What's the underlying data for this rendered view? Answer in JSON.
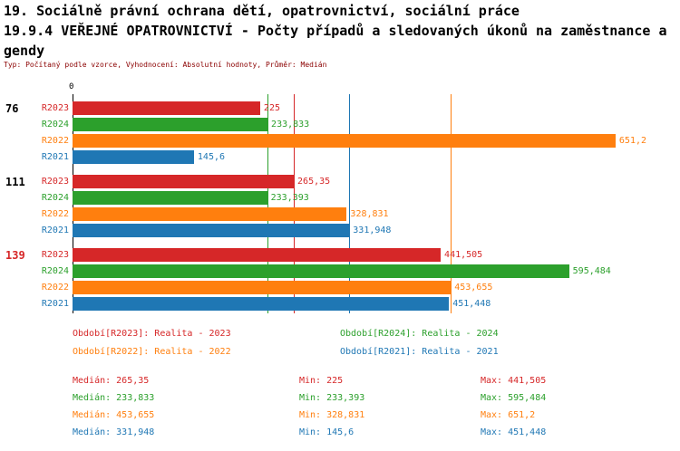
{
  "title": {
    "line1": "19. Sociálně právní ochrana dětí, opatrovnictví, sociální práce",
    "line2": "19.9.4 VEŘEJNÉ OPATROVNICTVÍ - Počty případů a sledovaných úkonů na zaměstnance a",
    "line3": "gendy",
    "subtitle": "Typ: Počítaný podle vzorce, Vyhodnocení: Absolutní hodnoty, Průměr: Medián"
  },
  "colors": {
    "R2023": "#d62728",
    "R2024": "#2ca02c",
    "R2022": "#ff7f0e",
    "R2021": "#1f77b4",
    "subtitle": "#8b0000",
    "axis": "#000000"
  },
  "chart_data": {
    "type": "bar",
    "orientation": "horizontal",
    "axis_origin_label": "0",
    "xlim": [
      0,
      685
    ],
    "grid": false,
    "series_order": [
      "R2023",
      "R2024",
      "R2022",
      "R2021"
    ],
    "groups": [
      {
        "label": "76",
        "label_color": "#000000",
        "bars": [
          {
            "series": "R2023",
            "value": 225,
            "value_label": "225"
          },
          {
            "series": "R2024",
            "value": 233.833,
            "value_label": "233,833"
          },
          {
            "series": "R2022",
            "value": 651.2,
            "value_label": "651,2"
          },
          {
            "series": "R2021",
            "value": 145.6,
            "value_label": "145,6"
          }
        ]
      },
      {
        "label": "111",
        "label_color": "#000000",
        "bars": [
          {
            "series": "R2023",
            "value": 265.35,
            "value_label": "265,35"
          },
          {
            "series": "R2024",
            "value": 233.393,
            "value_label": "233,393"
          },
          {
            "series": "R2022",
            "value": 328.831,
            "value_label": "328,831"
          },
          {
            "series": "R2021",
            "value": 331.948,
            "value_label": "331,948"
          }
        ]
      },
      {
        "label": "139",
        "label_color": "#d62728",
        "bars": [
          {
            "series": "R2023",
            "value": 441.505,
            "value_label": "441,505"
          },
          {
            "series": "R2024",
            "value": 595.484,
            "value_label": "595,484"
          },
          {
            "series": "R2022",
            "value": 453.655,
            "value_label": "453,655"
          },
          {
            "series": "R2021",
            "value": 451.448,
            "value_label": "451,448"
          }
        ]
      }
    ],
    "median_lines": [
      {
        "series": "R2023",
        "value": 265.35
      },
      {
        "series": "R2024",
        "value": 233.833
      },
      {
        "series": "R2022",
        "value": 453.655
      },
      {
        "series": "R2021",
        "value": 331.948
      }
    ]
  },
  "legend": [
    {
      "series": "R2023",
      "label": "Období[R2023]: Realita - 2023"
    },
    {
      "series": "R2024",
      "label": "Období[R2024]: Realita - 2024"
    },
    {
      "series": "R2022",
      "label": "Období[R2022]: Realita - 2022"
    },
    {
      "series": "R2021",
      "label": "Období[R2021]: Realita - 2021"
    }
  ],
  "stats": [
    {
      "series": "R2023",
      "median": "Medián: 265,35",
      "min": "Min: 225",
      "max": "Max: 441,505"
    },
    {
      "series": "R2024",
      "median": "Medián: 233,833",
      "min": "Min: 233,393",
      "max": "Max: 595,484"
    },
    {
      "series": "R2022",
      "median": "Medián: 453,655",
      "min": "Min: 328,831",
      "max": "Max: 651,2"
    },
    {
      "series": "R2021",
      "median": "Medián: 331,948",
      "min": "Min: 145,6",
      "max": "Max: 451,448"
    }
  ]
}
